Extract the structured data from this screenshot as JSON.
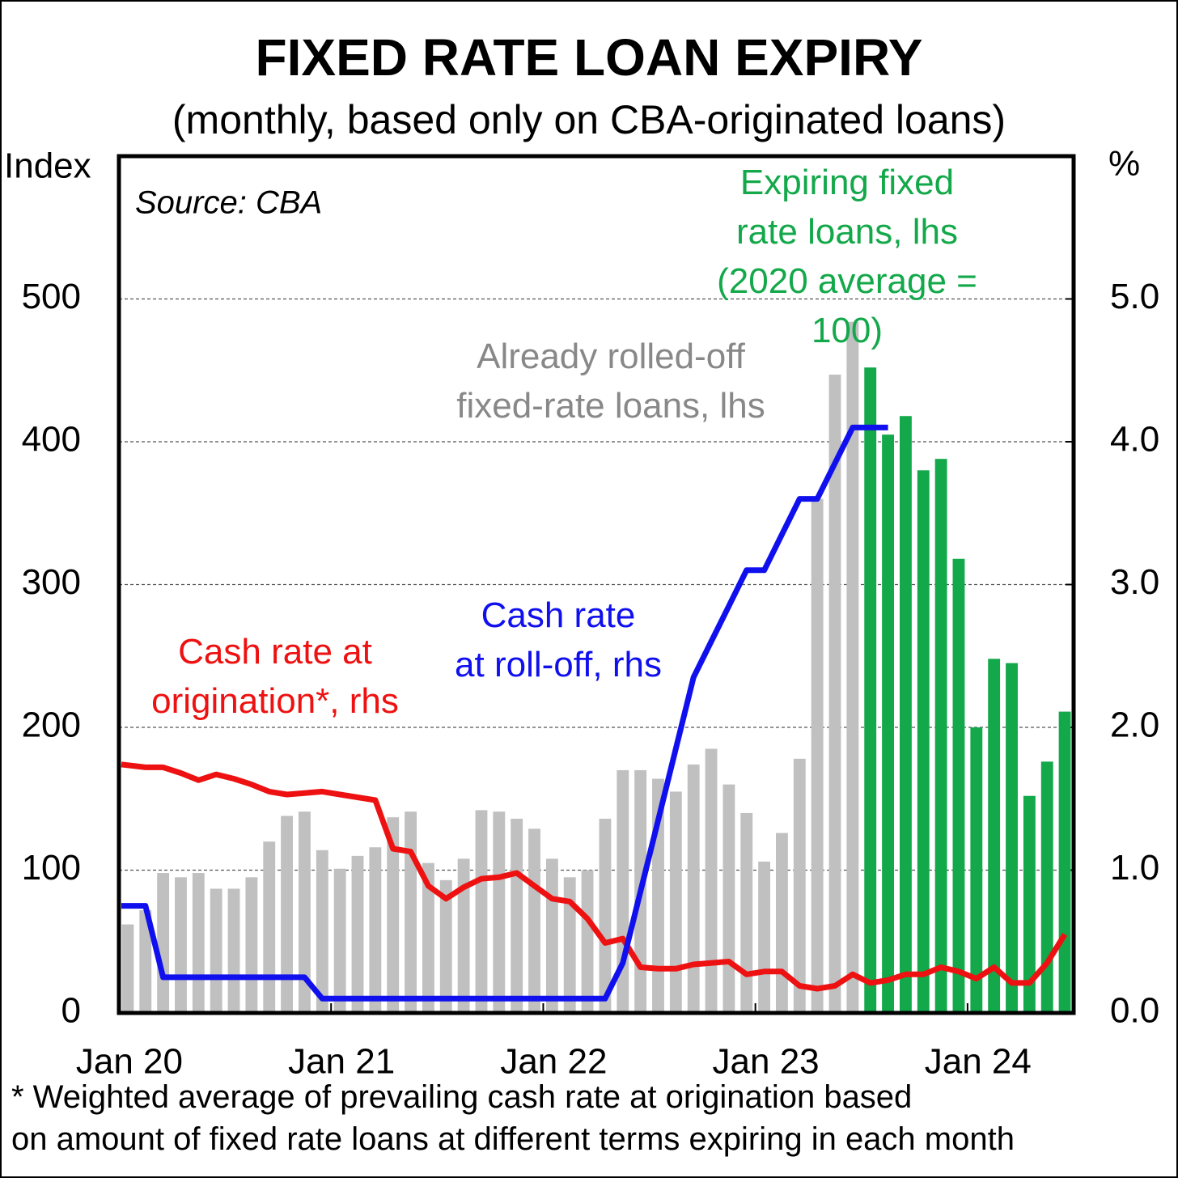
{
  "chart_data": {
    "type": "bar_line",
    "title": "FIXED RATE LOAN EXPIRY",
    "subtitle": "(monthly, based only on CBA-originated loans)",
    "y_label": "Index",
    "y2_label": "%",
    "source": "Source: CBA",
    "footnote": "*   Weighted average of prevailing cash rate at origination based\non amount of fixed rate loans at different terms expiring in each month",
    "categories": [
      "Jan 20",
      null,
      null,
      null,
      null,
      null,
      null,
      null,
      null,
      null,
      null,
      null,
      "Jan 21",
      null,
      null,
      null,
      null,
      null,
      null,
      null,
      null,
      null,
      null,
      null,
      "Jan 22",
      null,
      null,
      null,
      null,
      null,
      null,
      null,
      null,
      null,
      null,
      null,
      "Jan 23",
      null,
      null,
      null,
      null,
      null,
      null,
      null,
      null,
      null,
      null,
      null,
      "Jan 24",
      null,
      null,
      null,
      null,
      null
    ],
    "ylim": [
      0,
      600
    ],
    "yticks": [
      0,
      100,
      200,
      300,
      400,
      500
    ],
    "y2lim": [
      0,
      6
    ],
    "y2ticks": [
      {
        "value": 0,
        "label": "0.0"
      },
      {
        "value": 1,
        "label": "1.0"
      },
      {
        "value": 2,
        "label": "2.0"
      },
      {
        "value": 3,
        "label": "3.0"
      },
      {
        "value": 4,
        "label": "4.0"
      },
      {
        "value": 5,
        "label": "5.0"
      }
    ],
    "grid": true,
    "series": [
      {
        "name": "Already rolled-off\nfixed-rate loans, lhs",
        "kind": "bar",
        "color": "#c0c0c0",
        "values": [
          62,
          72,
          98,
          95,
          98,
          87,
          87,
          95,
          120,
          138,
          141,
          114,
          101,
          110,
          116,
          137,
          141,
          105,
          93,
          108,
          142,
          141,
          136,
          129,
          108,
          95,
          100,
          136,
          170,
          170,
          164,
          155,
          174,
          185,
          160,
          140,
          106,
          126,
          178,
          360,
          447,
          484,
          null,
          null,
          null,
          null,
          null,
          null,
          null,
          null,
          null,
          null,
          null,
          null
        ]
      },
      {
        "name": "Expiring fixed\nrate loans, lhs\n(2020 average = 100)",
        "kind": "bar",
        "color": "#13a84a",
        "values": [
          null,
          null,
          null,
          null,
          null,
          null,
          null,
          null,
          null,
          null,
          null,
          null,
          null,
          null,
          null,
          null,
          null,
          null,
          null,
          null,
          null,
          null,
          null,
          null,
          null,
          null,
          null,
          null,
          null,
          null,
          null,
          null,
          null,
          null,
          null,
          null,
          null,
          null,
          null,
          null,
          null,
          null,
          452,
          405,
          418,
          380,
          388,
          318,
          200,
          248,
          245,
          152,
          176,
          211
        ]
      },
      {
        "name": "Cash rate at\norigination*, rhs",
        "kind": "line",
        "axis": "y2",
        "color": "#ee1111",
        "values": [
          1.74,
          1.72,
          1.72,
          1.68,
          1.63,
          1.67,
          1.64,
          1.6,
          1.55,
          1.53,
          1.54,
          1.55,
          1.53,
          1.51,
          1.49,
          1.15,
          1.13,
          0.89,
          0.8,
          0.88,
          0.94,
          0.95,
          0.98,
          0.89,
          0.8,
          0.78,
          0.66,
          0.49,
          0.52,
          0.32,
          0.31,
          0.31,
          0.34,
          0.35,
          0.36,
          0.27,
          0.29,
          0.29,
          0.19,
          0.17,
          0.19,
          0.27,
          0.21,
          0.23,
          0.27,
          0.27,
          0.32,
          0.29,
          0.24,
          0.32,
          0.21,
          0.21,
          0.35,
          0.55
        ]
      },
      {
        "name": "Cash rate\nat roll-off, rhs",
        "kind": "line",
        "axis": "y2",
        "color": "#1010ee",
        "values": [
          0.75,
          0.75,
          0.25,
          0.25,
          0.25,
          0.25,
          0.25,
          0.25,
          0.25,
          0.25,
          0.25,
          0.1,
          0.1,
          0.1,
          0.1,
          0.1,
          0.1,
          0.1,
          0.1,
          0.1,
          0.1,
          0.1,
          0.1,
          0.1,
          0.1,
          0.1,
          0.1,
          0.1,
          0.35,
          0.85,
          1.35,
          1.85,
          2.35,
          2.6,
          2.85,
          3.1,
          3.1,
          3.35,
          3.6,
          3.6,
          3.85,
          4.1,
          4.1,
          4.1,
          null,
          null,
          null,
          null,
          null,
          null,
          null,
          null,
          null,
          null
        ]
      }
    ]
  }
}
